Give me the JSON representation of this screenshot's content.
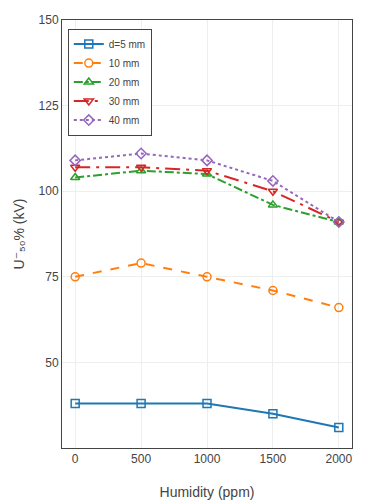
{
  "chart_data": {
    "type": "line",
    "x_label": "Humidity (ppm)",
    "y_label": "U⁻₅₀% (kV)",
    "x": [
      0,
      500,
      1000,
      1500,
      2000
    ],
    "series": [
      {
        "name": "d=5 mm",
        "values": [
          38,
          38,
          38,
          35,
          31
        ],
        "marker": "square",
        "line_style": "solid"
      },
      {
        "name": "10 mm",
        "values": [
          75,
          79,
          75,
          71,
          66
        ],
        "marker": "circle",
        "line_style": "dashed"
      },
      {
        "name": "20 mm",
        "values": [
          104,
          106,
          105,
          96,
          91
        ],
        "marker": "triangle-up",
        "line_style": "dashdot"
      },
      {
        "name": "30 mm",
        "values": [
          107,
          107,
          106,
          100,
          91
        ],
        "marker": "triangle-down",
        "line_style": "longdashdot"
      },
      {
        "name": "40 mm",
        "values": [
          109,
          111,
          109,
          103,
          91
        ],
        "marker": "diamond",
        "line_style": "dotted"
      }
    ],
    "xlim": [
      -100,
      2100
    ],
    "xticks": [
      0,
      500,
      1000,
      1500,
      2000
    ],
    "ylim": [
      25,
      150
    ],
    "yticks": [
      50,
      75,
      100,
      125,
      150
    ],
    "grid": true,
    "legend": "upper left"
  }
}
